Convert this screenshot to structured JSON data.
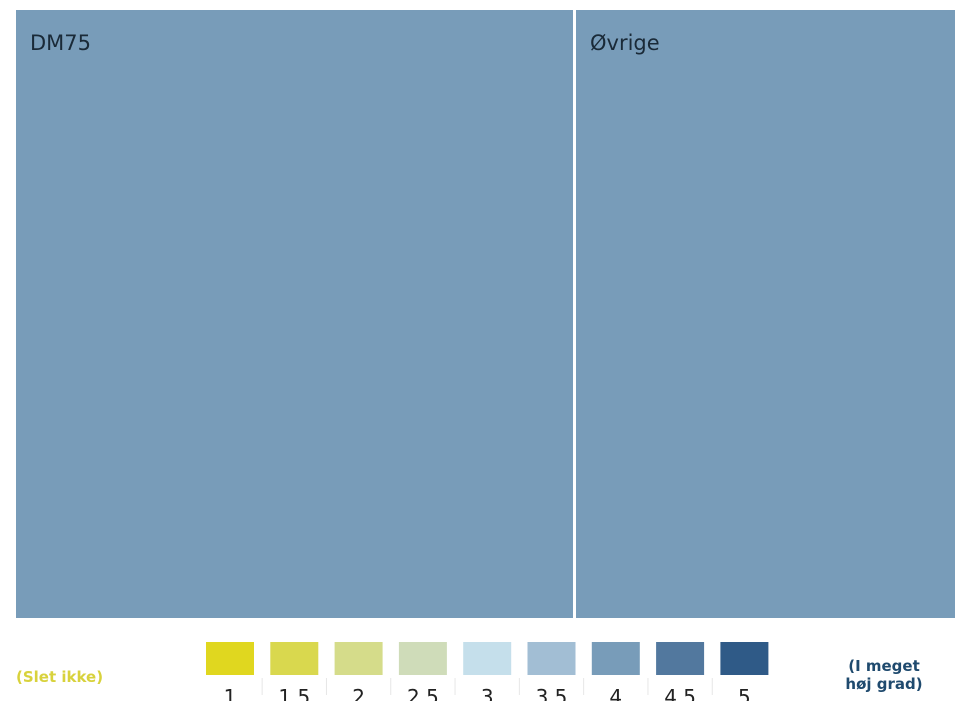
{
  "chart_data": {
    "type": "treemap",
    "tiles": [
      {
        "label": "DM75",
        "color_value": 4,
        "color": "#789cb9"
      },
      {
        "label": "Øvrige",
        "color_value": 4,
        "color": "#789cb9"
      }
    ],
    "legend": {
      "low_label": "(Slet ikke)",
      "high_label_lines": [
        "(I meget",
        "høj grad)"
      ],
      "steps": [
        {
          "label": "1",
          "color": "#e0d71f"
        },
        {
          "label": "1.5",
          "color": "#d9d84e"
        },
        {
          "label": "2",
          "color": "#d5dc8a"
        },
        {
          "label": "2.5",
          "color": "#cfdcb9"
        },
        {
          "label": "3",
          "color": "#c5dfeb"
        },
        {
          "label": "3.5",
          "color": "#a2bed4"
        },
        {
          "label": "4",
          "color": "#789cb9"
        },
        {
          "label": "4.5",
          "color": "#52789e"
        },
        {
          "label": "5",
          "color": "#2f5a87"
        }
      ]
    }
  }
}
